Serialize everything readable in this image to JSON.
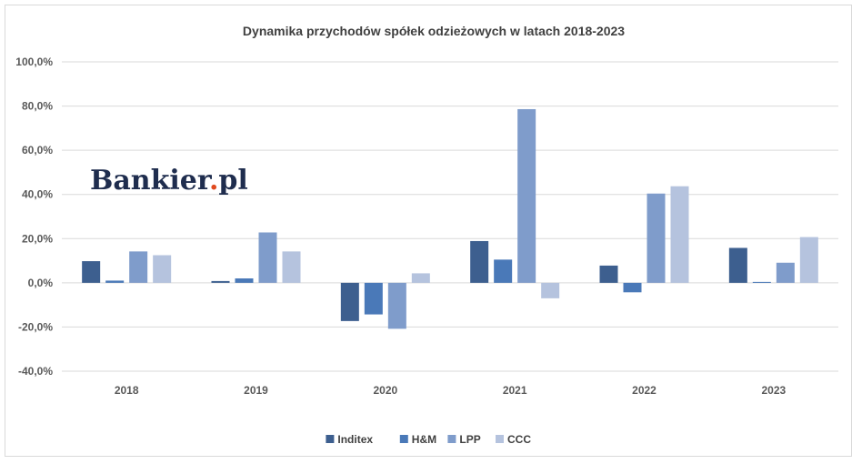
{
  "chart_data": {
    "type": "bar",
    "title": "Dynamika przychodów spółek odzieżowych w latach 2018-2023",
    "categories": [
      "2018",
      "2019",
      "2020",
      "2021",
      "2022",
      "2023"
    ],
    "ylim": [
      -40,
      100
    ],
    "yticks": [
      "100,0%",
      "80,0%",
      "60,0%",
      "40,0%",
      "20,0%",
      "0,0%",
      "-20,0%",
      "-40,0%"
    ],
    "grid": true,
    "legend_position": "bottom",
    "series": [
      {
        "name": "Inditex",
        "color": "#3d5f8f",
        "values": [
          9.8,
          0.8,
          -17.3,
          18.9,
          7.8,
          15.8
        ]
      },
      {
        "name": "H&M",
        "color": "#4a79b8",
        "values": [
          1.0,
          2.0,
          -14.3,
          10.5,
          -4.3,
          0.4
        ]
      },
      {
        "name": "LPP",
        "color": "#7f9ccb",
        "values": [
          14.2,
          22.8,
          -20.8,
          78.6,
          40.4,
          9.1
        ]
      },
      {
        "name": "CCC",
        "color": "#b5c3de",
        "values": [
          12.5,
          14.2,
          4.3,
          -7.0,
          43.7,
          20.7
        ]
      }
    ]
  },
  "logo": {
    "text_main": "Bankier",
    "text_dot": ".",
    "text_tld": "pl"
  }
}
